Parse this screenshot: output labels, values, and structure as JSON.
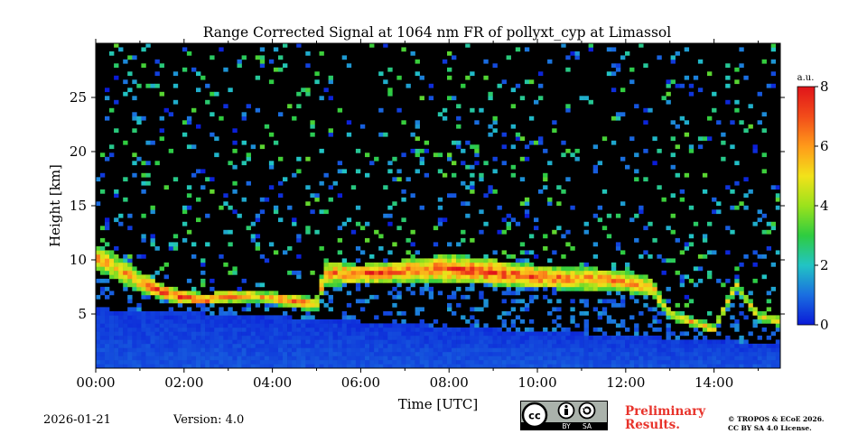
{
  "chart_data": {
    "type": "heatmap",
    "title": "Range Corrected Signal at 1064 nm FR of pollyxt_cyp at Limassol",
    "xlabel": "Time [UTC]",
    "ylabel": "Height [km]",
    "xlim": [
      0,
      15.5
    ],
    "ylim": [
      0,
      30
    ],
    "x_ticks": [
      {
        "value": 0,
        "label": "00:00"
      },
      {
        "value": 2,
        "label": "02:00"
      },
      {
        "value": 4,
        "label": "04:00"
      },
      {
        "value": 6,
        "label": "06:00"
      },
      {
        "value": 8,
        "label": "08:00"
      },
      {
        "value": 10,
        "label": "10:00"
      },
      {
        "value": 12,
        "label": "12:00"
      },
      {
        "value": 14,
        "label": "14:00"
      }
    ],
    "y_ticks": [
      {
        "value": 5,
        "label": "5"
      },
      {
        "value": 10,
        "label": "10"
      },
      {
        "value": 15,
        "label": "15"
      },
      {
        "value": 20,
        "label": "20"
      },
      {
        "value": 25,
        "label": "25"
      }
    ],
    "colorbar": {
      "label": "a.u.",
      "range": [
        0,
        8
      ],
      "ticks": [
        {
          "value": 0,
          "label": "0"
        },
        {
          "value": 2,
          "label": "2"
        },
        {
          "value": 4,
          "label": "4"
        },
        {
          "value": 6,
          "label": "6"
        },
        {
          "value": 8,
          "label": "8"
        }
      ],
      "colors": [
        "#0a1ad8",
        "#1a6ee0",
        "#22c4c4",
        "#2ecc40",
        "#9be21c",
        "#f2e21a",
        "#ff9a1a",
        "#f24c1a",
        "#e0141a"
      ]
    },
    "cloud_layer": [
      {
        "t": 0.0,
        "bottom": 9.0,
        "top": 11.5,
        "peak": 6.5
      },
      {
        "t": 0.5,
        "bottom": 8.0,
        "top": 10.5,
        "peak": 6.0
      },
      {
        "t": 1.0,
        "bottom": 7.0,
        "top": 9.0,
        "peak": 6.5
      },
      {
        "t": 1.5,
        "bottom": 6.3,
        "top": 7.8,
        "peak": 8.0
      },
      {
        "t": 2.0,
        "bottom": 5.9,
        "top": 7.2,
        "peak": 8.0
      },
      {
        "t": 2.5,
        "bottom": 5.8,
        "top": 6.8,
        "peak": 7.5
      },
      {
        "t": 3.0,
        "bottom": 6.0,
        "top": 7.3,
        "peak": 7.5
      },
      {
        "t": 3.5,
        "bottom": 6.2,
        "top": 7.2,
        "peak": 6.5
      },
      {
        "t": 4.0,
        "bottom": 5.9,
        "top": 7.0,
        "peak": 7.0
      },
      {
        "t": 4.5,
        "bottom": 5.5,
        "top": 6.8,
        "peak": 7.5
      },
      {
        "t": 5.0,
        "bottom": 5.3,
        "top": 6.5,
        "peak": 6.5
      },
      {
        "t": 5.2,
        "bottom": 7.6,
        "top": 10.0,
        "peak": 6.5
      },
      {
        "t": 6.0,
        "bottom": 7.8,
        "top": 9.5,
        "peak": 8.0
      },
      {
        "t": 7.0,
        "bottom": 8.0,
        "top": 10.0,
        "peak": 7.5
      },
      {
        "t": 8.0,
        "bottom": 7.9,
        "top": 10.5,
        "peak": 7.5
      },
      {
        "t": 9.0,
        "bottom": 7.7,
        "top": 10.0,
        "peak": 8.0
      },
      {
        "t": 10.0,
        "bottom": 7.4,
        "top": 9.5,
        "peak": 7.5
      },
      {
        "t": 11.0,
        "bottom": 7.2,
        "top": 9.3,
        "peak": 7.0
      },
      {
        "t": 12.0,
        "bottom": 7.0,
        "top": 9.0,
        "peak": 7.0
      },
      {
        "t": 12.6,
        "bottom": 6.6,
        "top": 8.3,
        "peak": 6.5
      },
      {
        "t": 13.0,
        "bottom": 4.5,
        "top": 5.5,
        "peak": 5.5
      },
      {
        "t": 13.5,
        "bottom": 3.8,
        "top": 4.8,
        "peak": 6.0
      },
      {
        "t": 14.0,
        "bottom": 3.2,
        "top": 4.0,
        "peak": 6.0
      },
      {
        "t": 14.5,
        "bottom": 7.2,
        "top": 8.2,
        "peak": 5.5
      },
      {
        "t": 15.0,
        "bottom": 4.3,
        "top": 5.3,
        "peak": 5.5
      },
      {
        "t": 15.5,
        "bottom": 3.8,
        "top": 4.8,
        "peak": 5.5
      }
    ],
    "boundary_layer": [
      {
        "t": 0.0,
        "top": 5.5
      },
      {
        "t": 4.0,
        "top": 4.8
      },
      {
        "t": 8.0,
        "top": 3.8
      },
      {
        "t": 12.0,
        "top": 3.0
      },
      {
        "t": 15.5,
        "top": 2.2
      }
    ]
  },
  "footer": {
    "date": "2026-01-21",
    "version": "Version: 4.0",
    "preliminary_line1": "Preliminary",
    "preliminary_line2": "Results.",
    "copyright_line1": "© TROPOS & ECoE 2026.",
    "copyright_line2": "CC BY SA 4.0 License.",
    "license_by": "BY",
    "license_sa": "SA"
  }
}
